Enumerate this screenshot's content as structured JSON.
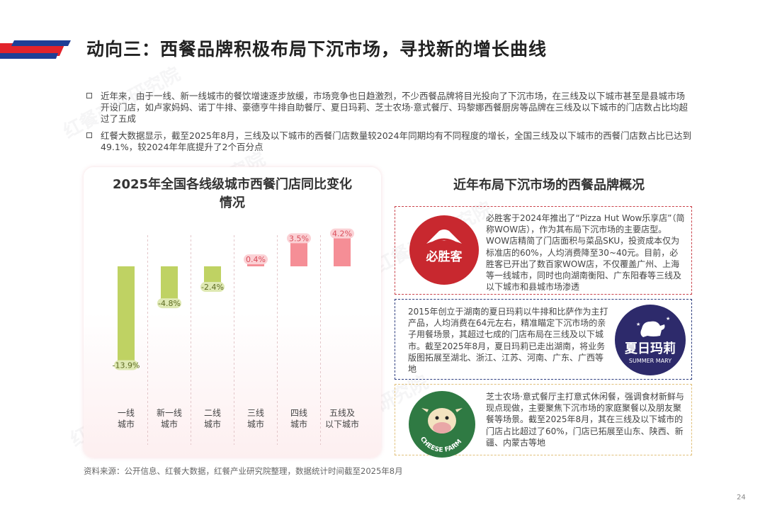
{
  "title": "动向三：西餐品牌积极布局下沉市场，寻找新的增长曲线",
  "bullets": [
    "近年来，由于一线、新一线城市的餐饮增速逐步放缓，市场竞争也日趋激烈，不少西餐品牌将目光投向了下沉市场，在三线及以下城市甚至是县城市场开设门店，如卢家妈妈、诺丁牛排、豪德亨牛排自助餐厅、夏日玛莉、芝士农场·意式餐厅、玛黎娜西餐厨房等品牌在三线及以下城市的门店数占比均超过了五成",
    "红餐大数据显示，截至2025年8月，三线及以下城市的西餐门店数量较2024年同期均有不同程度的增长，全国三线及以下城市的西餐门店数占比已达到49.1%，较2024年年底提升了2个百分点"
  ],
  "chart_data": {
    "type": "bar",
    "title_lines": [
      "2025年全国各线级城市西餐门店同比变化",
      "情况"
    ],
    "categories": [
      [
        "一线",
        "城市"
      ],
      [
        "新一线",
        "城市"
      ],
      [
        "二线",
        "城市"
      ],
      [
        "三线",
        "城市"
      ],
      [
        "四线",
        "城市"
      ],
      [
        "五线及",
        "以下城市"
      ]
    ],
    "values": [
      -13.9,
      -4.8,
      -2.4,
      0.4,
      3.5,
      4.2
    ],
    "value_labels": [
      "-13.9%",
      "-4.8%",
      "-2.4%",
      "0.4%",
      "3.5%",
      "4.2%"
    ],
    "unit": "%",
    "negative_color": "#bfd263",
    "positive_color": "#f58e96",
    "positive_color_light": "#fbd1d5"
  },
  "right_title": "近年布局下沉市场的西餐品牌概况",
  "brands": [
    {
      "name": "必胜客",
      "text": "必胜客于2024年推出了“Pizza Hut Wow乐享店”（简称WOW店），作为其布局下沉市场的主要店型。WOW店精简了门店面积与菜品SKU，投资成本仅为标准店的60%，人均消费降至30~40元。目前，必胜客已开出了数百家WOW店，不仅覆盖广州、上海等一线城市，同时也向湖南衡阳、广东阳春等三线及以下城市和县城市场渗透"
    },
    {
      "name": "夏日玛莉",
      "name_en": "SUMMER MARY",
      "text": "2015年创立于湖南的夏日玛莉以牛排和比萨作为主打产品，人均消费在64元左右，精准瞄定下沉市场的亲子用餐场景，其超过七成的门店布局在三线及以下城市。截至2025年8月，夏日玛莉已走出湖南，将业务版图拓展至湖北、浙江、江苏、河南、广东、广西等地"
    },
    {
      "name": "CHEESE FARM",
      "text": "芝士农场·意式餐厅主打意式休闲餐，强调食材新鲜与现点现做，主要聚焦下沉市场的家庭聚餐以及朋友聚餐等场景。截至2025年8月，其在三线及以下城市的门店占比超过了60%，门店已拓展至山东、陕西、新疆、内蒙古等地"
    }
  ],
  "source": "资料来源：公开信息、红餐大数据，红餐产业研究院整理，数据统计时间截至2025年8月",
  "page_number": "24",
  "watermark": "红餐产业研究院",
  "colors": {
    "accent_red": "#e2232b",
    "accent_blue": "#1e3f96"
  }
}
